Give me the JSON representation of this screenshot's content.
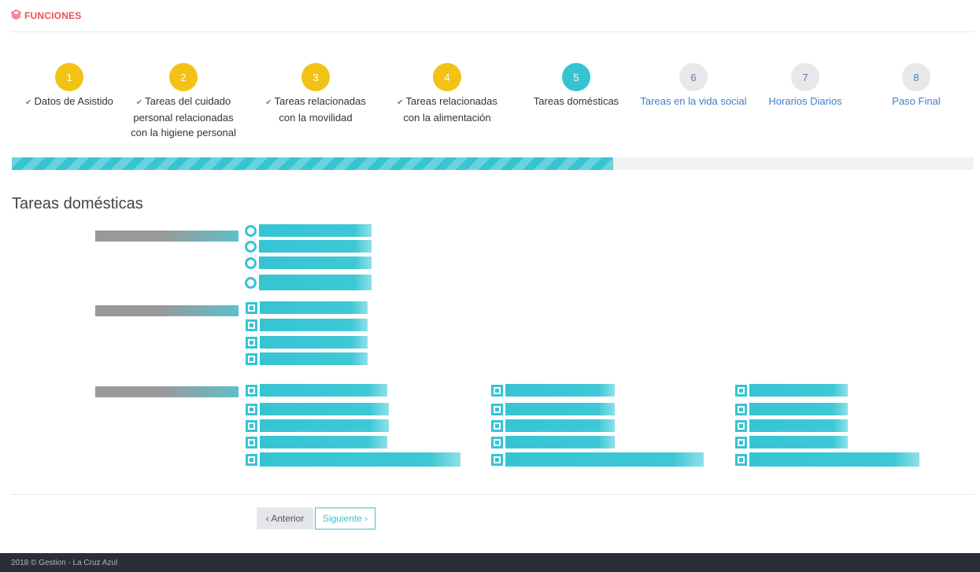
{
  "header": {
    "title": "FUNCIONES",
    "icon": "layers-icon",
    "color": "#e8505b"
  },
  "steps": [
    {
      "number": "1",
      "label": "Datos de Asistido",
      "state": "done"
    },
    {
      "number": "2",
      "label": "Tareas del cuidado personal relacionadas con la higiene personal",
      "state": "done"
    },
    {
      "number": "3",
      "label": "Tareas relacionadas con la movilidad",
      "state": "done"
    },
    {
      "number": "4",
      "label": "Tareas relacionadas con la alimentación",
      "state": "done"
    },
    {
      "number": "5",
      "label": "Tareas domésticas",
      "state": "current"
    },
    {
      "number": "6",
      "label": "Tareas en la vida social",
      "state": "todo"
    },
    {
      "number": "7",
      "label": "Horarios Diarios",
      "state": "todo"
    },
    {
      "number": "8",
      "label": "Paso Final",
      "state": "todo"
    }
  ],
  "progress": {
    "percent": 62.5
  },
  "section": {
    "title": "Tareas domésticas"
  },
  "form": {
    "groups": [
      {
        "input": "radio",
        "options": 4,
        "columns": 1
      },
      {
        "input": "checkbox",
        "options": 4,
        "columns": 1
      },
      {
        "input": "checkbox",
        "options": 5,
        "columns": 3
      }
    ]
  },
  "nav": {
    "prev_label": "‹ Anterior",
    "next_label": "Siguiente ›"
  },
  "footer": {
    "text": "2018 © Gestion - La Cruz Azul"
  },
  "colors": {
    "accent": "#36c4d3",
    "done": "#f2c314",
    "pending": "#e8e8e8",
    "link": "#3f80c8"
  }
}
